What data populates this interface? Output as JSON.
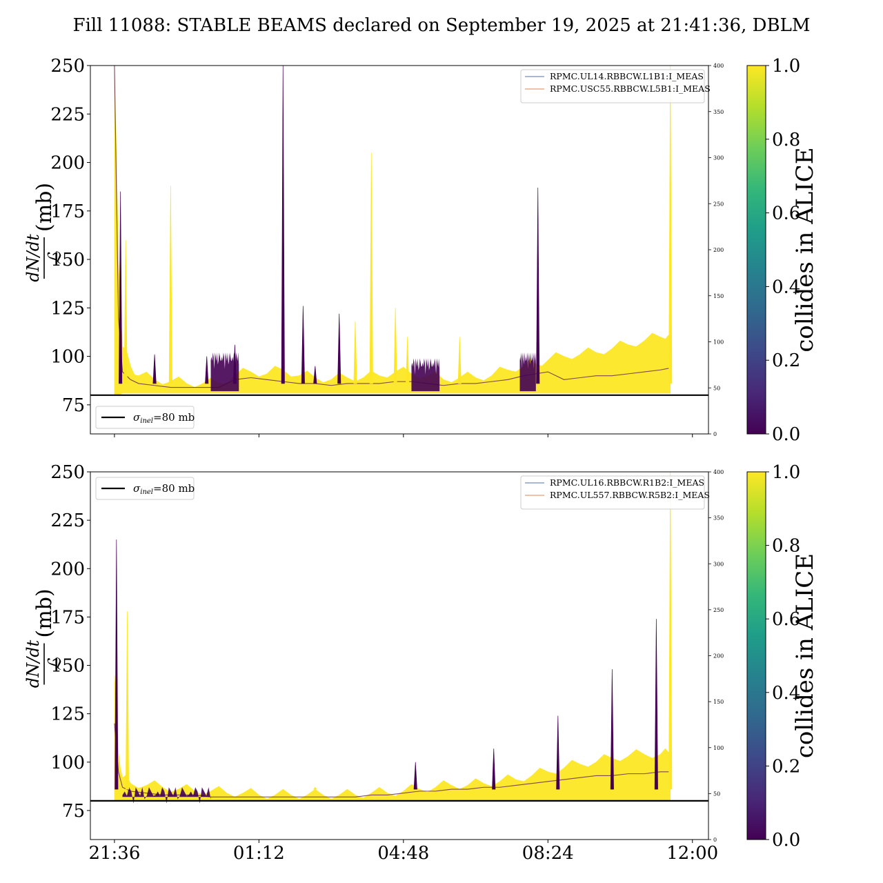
{
  "title": "Fill 11088: STABLE BEAMS declared on September 19, 2025 at 21:41:36, DBLM",
  "colors": {
    "viridis": [
      "#440154",
      "#482878",
      "#3e4989",
      "#31688e",
      "#26828e",
      "#1f9e89",
      "#35b779",
      "#6ece58",
      "#b5de2b",
      "#fde725"
    ],
    "line_blue": "#4c72b0",
    "line_orange": "#dd8452",
    "ref_line": "#000000"
  },
  "chart_data": [
    {
      "type": "line",
      "name": "top",
      "ylabel": "dN/dt / ℒ (mb)",
      "ylabel_num": "dN/dt",
      "ylabel_den": "ℒ",
      "ylabel_unit": "(mb)",
      "ylim": [
        60,
        250
      ],
      "yticks": [
        75,
        100,
        125,
        150,
        175,
        200,
        225,
        250
      ],
      "y2lim": [
        0,
        400
      ],
      "y2ticks": [
        0,
        50,
        100,
        150,
        200,
        250,
        300,
        350,
        400
      ],
      "xlim": [
        -0.6,
        14.8
      ],
      "xticks": [
        0,
        3.6,
        7.2,
        10.8,
        14.4
      ],
      "xticklabels": [
        "21:36",
        "01:12",
        "04:48",
        "08:24",
        "12:00"
      ],
      "show_xticklabels": false,
      "reference": {
        "value": 80,
        "label_sym": "σ",
        "label_sub": "inel",
        "label_rest": "=80 mb",
        "legend_loc": "lower-left"
      },
      "series_legend": [
        "RPMC.UL14.RBBCW.L1B1:I_MEAS",
        "RPMC.USC55.RBBCW.L5B1:I_MEAS"
      ],
      "series_legend_loc": "upper-right",
      "envelope": {
        "x": [
          0,
          0.1,
          0.2,
          0.4,
          0.6,
          1.0,
          1.4,
          1.8,
          2.2,
          2.6,
          3.0,
          3.4,
          3.8,
          4.2,
          4.6,
          5.0,
          5.4,
          5.8,
          6.2,
          6.6,
          7.0,
          7.4,
          7.8,
          8.2,
          8.6,
          9.0,
          9.4,
          9.8,
          10.2,
          10.5,
          10.8,
          11.2,
          11.6,
          12.0,
          12.4,
          12.8,
          13.2,
          13.6,
          13.85
        ],
        "upper": [
          250,
          150,
          105,
          95,
          90,
          88,
          87,
          86,
          86,
          86,
          90,
          92,
          91,
          93,
          90,
          89,
          88,
          89,
          89,
          90,
          92,
          91,
          90,
          88,
          89,
          89,
          90,
          93,
          95,
          96,
          98,
          100,
          101,
          102,
          104,
          106,
          108,
          110,
          112
        ],
        "lower": [
          80,
          80,
          81,
          81,
          81,
          81,
          81,
          81,
          81,
          81,
          81,
          81,
          81,
          81,
          81,
          81,
          81,
          81,
          81,
          81,
          81,
          81,
          81,
          81,
          81,
          81,
          81,
          81,
          81,
          81,
          81,
          81,
          81,
          81,
          81,
          81,
          81,
          81,
          81
        ],
        "core": [
          250,
          120,
          92,
          88,
          86,
          85,
          84,
          84,
          84,
          84,
          88,
          89,
          88,
          87,
          86,
          86,
          85,
          86,
          86,
          86,
          87,
          87,
          86,
          85,
          86,
          86,
          87,
          88,
          90,
          91,
          92,
          88,
          89,
          90,
          90,
          91,
          92,
          93,
          94
        ]
      },
      "spikes": [
        {
          "x": 0.15,
          "y": 185,
          "c": 0.0
        },
        {
          "x": 0.28,
          "y": 160,
          "c": 1.0
        },
        {
          "x": 1.0,
          "y": 101,
          "c": 0.0
        },
        {
          "x": 1.4,
          "y": 188,
          "c": 1.0
        },
        {
          "x": 2.3,
          "y": 100,
          "c": 0.0
        },
        {
          "x": 3.0,
          "y": 106,
          "c": 0.0
        },
        {
          "x": 4.2,
          "y": 250,
          "c": 0.0
        },
        {
          "x": 4.7,
          "y": 126,
          "c": 0.0
        },
        {
          "x": 5.0,
          "y": 95,
          "c": 0.0
        },
        {
          "x": 5.6,
          "y": 122,
          "c": 0.0
        },
        {
          "x": 6.0,
          "y": 118,
          "c": 1.0
        },
        {
          "x": 6.4,
          "y": 205,
          "c": 1.0
        },
        {
          "x": 7.0,
          "y": 125,
          "c": 1.0
        },
        {
          "x": 7.3,
          "y": 110,
          "c": 1.0
        },
        {
          "x": 8.6,
          "y": 110,
          "c": 1.0
        },
        {
          "x": 10.55,
          "y": 187,
          "c": 0.0
        },
        {
          "x": 13.85,
          "y": 250,
          "c": 1.0
        }
      ],
      "band_bumps": [
        {
          "from": 2.4,
          "to": 3.1,
          "top": 102,
          "c": 0.0
        },
        {
          "from": 7.4,
          "to": 8.1,
          "top": 99,
          "c": 0.0
        },
        {
          "from": 10.1,
          "to": 10.5,
          "top": 102,
          "c": 0.0
        }
      ]
    },
    {
      "type": "line",
      "name": "bottom",
      "ylabel": "dN/dt / ℒ (mb)",
      "ylabel_num": "dN/dt",
      "ylabel_den": "ℒ",
      "ylabel_unit": "(mb)",
      "ylim": [
        60,
        250
      ],
      "yticks": [
        75,
        100,
        125,
        150,
        175,
        200,
        225,
        250
      ],
      "y2lim": [
        0,
        400
      ],
      "y2ticks": [
        0,
        50,
        100,
        150,
        200,
        250,
        300,
        350,
        400
      ],
      "xlim": [
        -0.6,
        14.8
      ],
      "xticks": [
        0,
        3.6,
        7.2,
        10.8,
        14.4
      ],
      "xticklabels": [
        "21:36",
        "01:12",
        "04:48",
        "08:24",
        "12:00"
      ],
      "show_xticklabels": true,
      "reference": {
        "value": 80,
        "label_sym": "σ",
        "label_sub": "inel",
        "label_rest": "=80 mb",
        "legend_loc": "upper-left"
      },
      "series_legend": [
        "RPMC.UL16.RBBCW.R1B2:I_MEAS",
        "RPMC.UL557.RBBCW.R5B2:I_MEAS"
      ],
      "series_legend_loc": "upper-right",
      "envelope": {
        "x": [
          0,
          0.1,
          0.2,
          0.4,
          0.8,
          1.2,
          1.6,
          2.0,
          2.4,
          2.8,
          3.2,
          3.6,
          4.0,
          4.4,
          4.8,
          5.2,
          5.6,
          6.0,
          6.4,
          6.8,
          7.2,
          7.6,
          8.0,
          8.4,
          8.8,
          9.2,
          9.6,
          10.0,
          10.4,
          10.8,
          11.2,
          11.6,
          12.0,
          12.4,
          12.8,
          13.2,
          13.6,
          13.85
        ],
        "upper": [
          145,
          105,
          92,
          89,
          88,
          87,
          86,
          85,
          85,
          84,
          84,
          83,
          83,
          83,
          83,
          83,
          83,
          83,
          84,
          84,
          85,
          86,
          87,
          88,
          88,
          89,
          90,
          91,
          93,
          95,
          97,
          99,
          100,
          102,
          103,
          104,
          104,
          104
        ],
        "lower": [
          80,
          80,
          80,
          80,
          80,
          80,
          80,
          80,
          80,
          80,
          80,
          80,
          80,
          80,
          80,
          80,
          80,
          80,
          80,
          80,
          80,
          80,
          80,
          80,
          80,
          80,
          80,
          80,
          80,
          80,
          80,
          80,
          80,
          80,
          80,
          80,
          80,
          80
        ],
        "core": [
          120,
          95,
          87,
          85,
          84,
          83,
          83,
          83,
          82,
          82,
          82,
          82,
          82,
          82,
          82,
          82,
          82,
          82,
          83,
          83,
          84,
          85,
          85,
          86,
          86,
          87,
          87,
          88,
          89,
          90,
          91,
          92,
          93,
          93,
          94,
          94,
          95,
          95
        ]
      },
      "spikes": [
        {
          "x": 0.05,
          "y": 215,
          "c": 0.0
        },
        {
          "x": 0.32,
          "y": 178,
          "c": 1.0
        },
        {
          "x": 5.0,
          "y": 87,
          "c": 1.0
        },
        {
          "x": 7.5,
          "y": 100,
          "c": 0.0
        },
        {
          "x": 9.45,
          "y": 107,
          "c": 0.0
        },
        {
          "x": 11.05,
          "y": 124,
          "c": 0.0
        },
        {
          "x": 12.4,
          "y": 148,
          "c": 0.0
        },
        {
          "x": 13.5,
          "y": 174,
          "c": 0.0
        },
        {
          "x": 13.85,
          "y": 250,
          "c": 1.0
        }
      ],
      "band_bumps": [
        {
          "from": 0.2,
          "to": 2.4,
          "top": 87,
          "c": 0.0
        }
      ]
    }
  ],
  "colorbars": [
    {
      "label": "collides in ALICE",
      "ticks": [
        0.0,
        0.2,
        0.4,
        0.6,
        0.8,
        1.0
      ],
      "ticklabels": [
        "0.0",
        "0.2",
        "0.4",
        "0.6",
        "0.8",
        "1.0"
      ]
    },
    {
      "label": "collides in ALICE",
      "ticks": [
        0.0,
        0.2,
        0.4,
        0.6,
        0.8,
        1.0
      ],
      "ticklabels": [
        "0.0",
        "0.2",
        "0.4",
        "0.6",
        "0.8",
        "1.0"
      ]
    }
  ]
}
